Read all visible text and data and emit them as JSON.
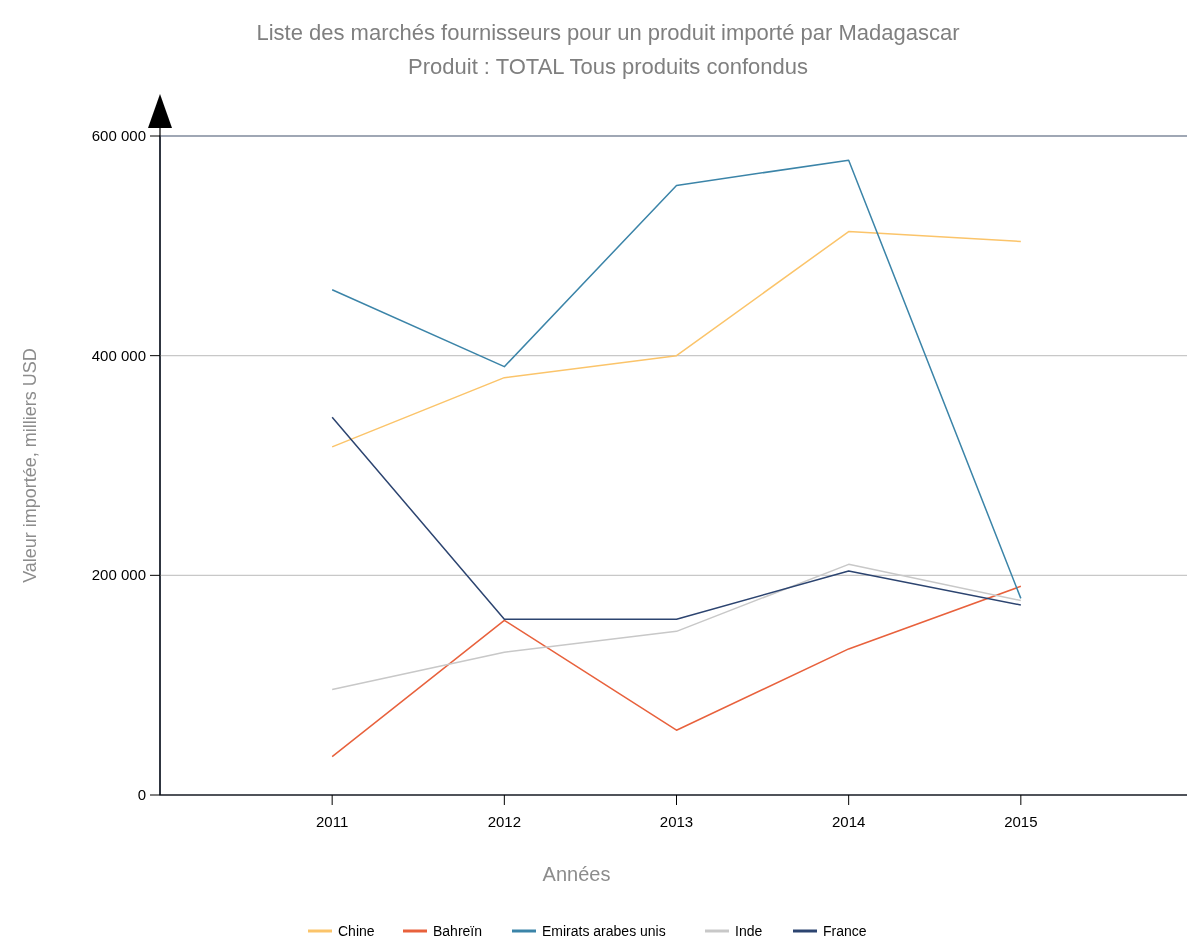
{
  "chart_data": {
    "type": "line",
    "title": "Liste des marchés fournisseurs pour un produit importé par Madagascar",
    "subtitle": "Produit : TOTAL Tous produits confondus",
    "xlabel": "Années",
    "ylabel": "Valeur importée, milliers USD",
    "x": [
      2011,
      2012,
      2013,
      2014,
      2015
    ],
    "xlim": [
      2010,
      2016
    ],
    "xticks": [
      2011,
      2012,
      2013,
      2014,
      2015
    ],
    "ylim": [
      0,
      600000
    ],
    "yticks": [
      {
        "value": 0,
        "label": "0"
      },
      {
        "value": 200000,
        "label": "200 000"
      },
      {
        "value": 400000,
        "label": "400 000"
      },
      {
        "value": 600000,
        "label": "600 000"
      }
    ],
    "grid": "y",
    "legend": "bottom",
    "marker": "none",
    "line_style": "solid",
    "series": [
      {
        "name": "Chine",
        "color": "#fbc46a",
        "values": [
          317000,
          380000,
          400000,
          513000,
          504000
        ]
      },
      {
        "name": "Bahreïn",
        "color": "#e8613c",
        "values": [
          35000,
          159000,
          59000,
          133000,
          190000
        ]
      },
      {
        "name": "Emirats arabes unis",
        "color": "#3b84a8",
        "values": [
          460000,
          390000,
          555000,
          578000,
          179000
        ]
      },
      {
        "name": "Inde",
        "color": "#c8c8c8",
        "values": [
          96000,
          130000,
          149000,
          210000,
          177000
        ]
      },
      {
        "name": "France",
        "color": "#2c4470",
        "values": [
          344000,
          160000,
          160000,
          204000,
          173000
        ]
      }
    ]
  }
}
